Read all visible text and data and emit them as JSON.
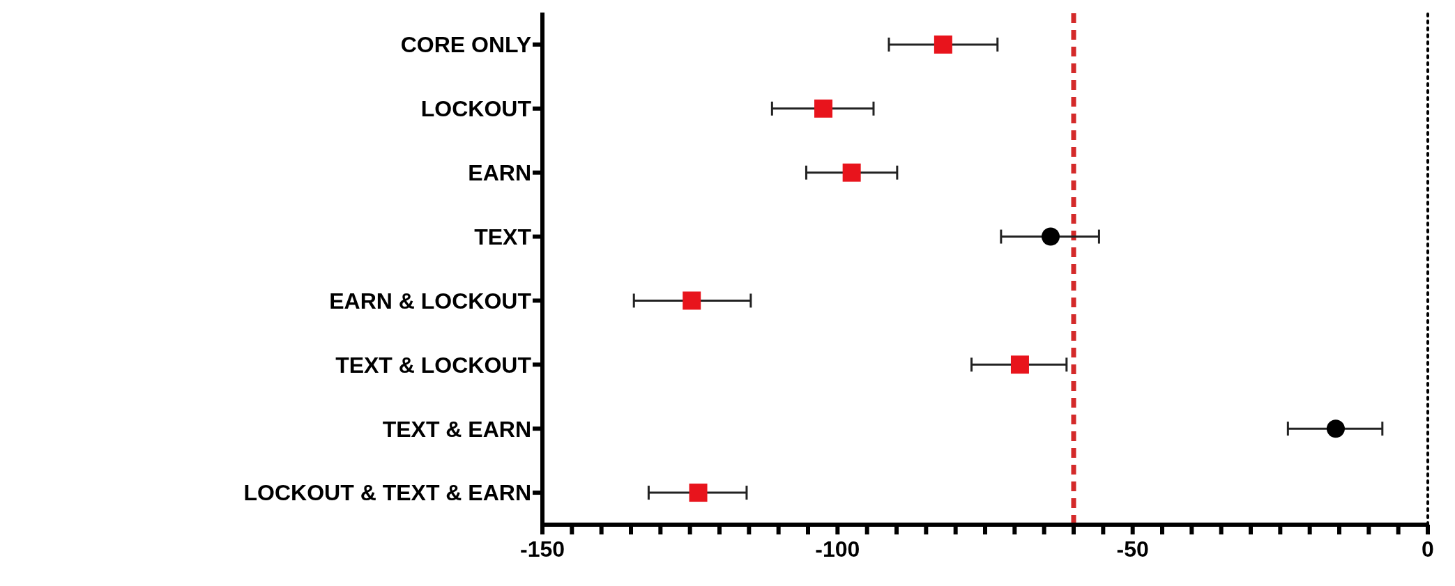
{
  "chart_data": {
    "type": "scatter",
    "orientation": "horizontal",
    "categories": [
      "CORE ONLY",
      "LOCKOUT",
      "EARN",
      "TEXT",
      "EARN & LOCKOUT",
      "TEXT & LOCKOUT",
      "TEXT & EARN",
      "LOCKOUT & TEXT & EARN"
    ],
    "series": [
      {
        "color": "#e8141c",
        "marker": "square",
        "values": [
          -82.1,
          -102.4,
          -97.6,
          null,
          -124.7,
          -69.1,
          null,
          -123.6
        ],
        "errors": [
          [
            -91.3,
            -72.9
          ],
          [
            -111.1,
            -93.9
          ],
          [
            -105.3,
            -89.9
          ],
          null,
          [
            -134.5,
            -114.7
          ],
          [
            -77.3,
            -61.2
          ],
          null,
          [
            -132,
            -115.4
          ]
        ]
      },
      {
        "color": "#000000",
        "marker": "circle",
        "values": [
          null,
          null,
          null,
          -63.9,
          null,
          null,
          -15.6,
          null
        ],
        "errors": [
          null,
          null,
          null,
          [
            -72.3,
            -55.7
          ],
          null,
          null,
          [
            -23.7,
            -7.7
          ],
          null
        ]
      }
    ],
    "xlim": [
      -150,
      0
    ],
    "xticks": [
      -150,
      {
        "value": -145,
        "label": null
      },
      {
        "value": -140,
        "label": null
      },
      {
        "value": -135,
        "label": null
      },
      {
        "value": -130,
        "label": null
      },
      {
        "value": -125,
        "label": null
      },
      {
        "value": -120,
        "label": null
      },
      {
        "value": -115,
        "label": null
      },
      {
        "value": -110,
        "label": null
      },
      {
        "value": -105,
        "label": null
      },
      -100,
      {
        "value": -95,
        "label": null
      },
      {
        "value": -90,
        "label": null
      },
      {
        "value": -85,
        "label": null
      },
      {
        "value": -80,
        "label": null
      },
      {
        "value": -75,
        "label": null
      },
      {
        "value": -70,
        "label": null
      },
      {
        "value": -65,
        "label": null
      },
      {
        "value": -60,
        "label": null
      },
      {
        "value": -55,
        "label": null
      },
      -50,
      {
        "value": -45,
        "label": null
      },
      {
        "value": -40,
        "label": null
      },
      {
        "value": -35,
        "label": null
      },
      {
        "value": -30,
        "label": null
      },
      {
        "value": -25,
        "label": null
      },
      {
        "value": -20,
        "label": null
      },
      {
        "value": -15,
        "label": null
      },
      {
        "value": -10,
        "label": null
      },
      {
        "value": -5,
        "label": null
      },
      0
    ],
    "ref_lines": [
      {
        "axis": "x",
        "value": -60,
        "color": "#d42a2a",
        "line_style": "dashed"
      },
      {
        "axis": "x",
        "value": 0,
        "color": "#000000",
        "line_style": "dotted"
      }
    ],
    "grid": false,
    "legend": false
  }
}
